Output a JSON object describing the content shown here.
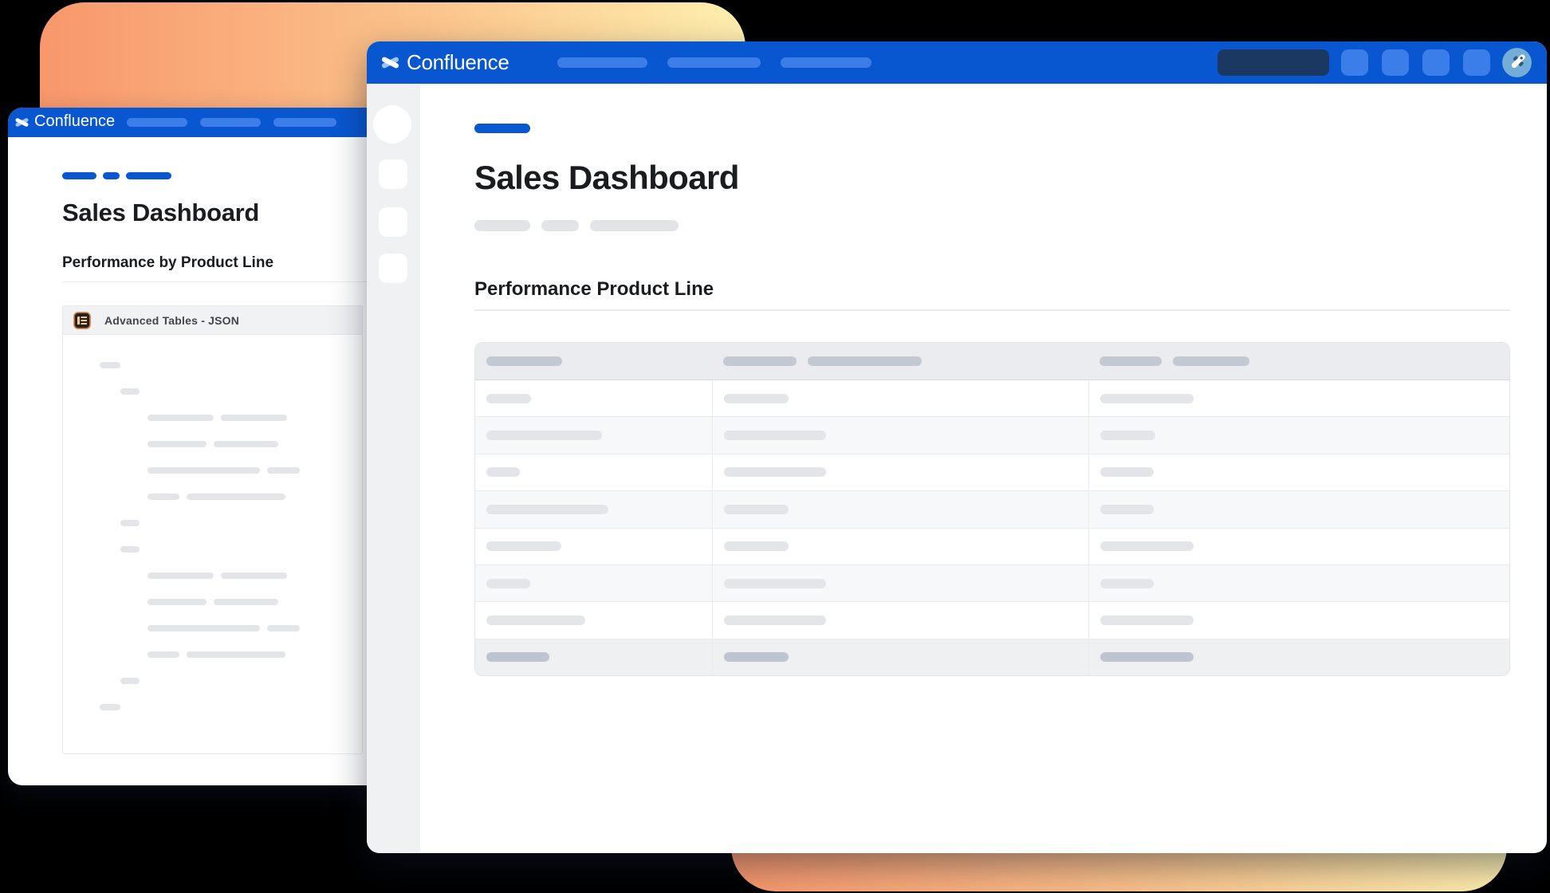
{
  "colors": {
    "canvas": "#000000",
    "grad_from": "#f8976b",
    "grad_mid": "#fbc48c",
    "grad_to": "#feefae",
    "brand_blue": "#0957d0",
    "nav_pill": "#3c7ee9",
    "search_navy": "#1a3862",
    "sidebar_bg": "#eff1f3",
    "skeleton": "#e3e5e9",
    "divider": "#e9ebee",
    "row_border": "#e9ebee",
    "table_border": "#e3e5e9",
    "table_header_bg": "#eaecf0",
    "table_header_pill": "#c3c9d3",
    "table_alt_bg": "#f7f8f9",
    "table_footer_bg": "#eef0f2",
    "table_footer_pill": "#bfc5d0",
    "title_text": "#1a1c1f",
    "macro_text": "#42464d"
  },
  "back_window": {
    "titlebar": {
      "app_name": "Confluence",
      "logo_icon": "confluence-logo-icon",
      "nav_pills": [
        76,
        76,
        79
      ]
    },
    "breadcrumb_pills": [
      43,
      21,
      57
    ],
    "page_title": "Sales Dashboard",
    "section_heading": "Performance by Product Line",
    "macro_panel": {
      "icon": "advanced-tables-icon",
      "label": "Advanced Tables - JSON",
      "skeleton_lines": [
        {
          "indent": 46,
          "pills": [
            26
          ]
        },
        {
          "indent": 72,
          "pills": [
            24
          ]
        },
        {
          "indent": 106,
          "pills": [
            83,
            83
          ]
        },
        {
          "indent": 106,
          "pills": [
            74,
            81
          ]
        },
        {
          "indent": 106,
          "pills": [
            141,
            41
          ]
        },
        {
          "indent": 106,
          "pills": [
            40,
            124
          ]
        },
        {
          "indent": 72,
          "pills": [
            24
          ]
        },
        {
          "indent": 72,
          "pills": [
            24
          ]
        },
        {
          "indent": 106,
          "pills": [
            83,
            83
          ]
        },
        {
          "indent": 106,
          "pills": [
            74,
            81
          ]
        },
        {
          "indent": 106,
          "pills": [
            141,
            41
          ]
        },
        {
          "indent": 106,
          "pills": [
            40,
            124
          ]
        },
        {
          "indent": 72,
          "pills": [
            24
          ]
        },
        {
          "indent": 46,
          "pills": [
            26
          ]
        }
      ]
    }
  },
  "front_window": {
    "titlebar": {
      "app_name": "Confluence",
      "logo_icon": "confluence-logo-icon",
      "nav_pills": [
        113,
        117,
        114
      ],
      "action_buttons": 4,
      "avatar_icon": "rocket-avatar-icon"
    },
    "sidebar_items": 3,
    "space_pill_width": 70,
    "page_title": "Sales Dashboard",
    "byline_pills": [
      70,
      47,
      111
    ],
    "section_heading": "Performance Product Line",
    "table": {
      "column_fractions": [
        0.229,
        0.364,
        0.407
      ],
      "header_pills": [
        [
          95
        ],
        [
          92,
          143
        ],
        [
          78,
          96
        ]
      ],
      "rows": [
        {
          "variant": "white",
          "cells": [
            [
              56
            ],
            [
              81
            ],
            [
              117
            ]
          ]
        },
        {
          "variant": "alt",
          "cells": [
            [
              145
            ],
            [
              128
            ],
            [
              69
            ]
          ]
        },
        {
          "variant": "white",
          "cells": [
            [
              42
            ],
            [
              128
            ],
            [
              67
            ]
          ]
        },
        {
          "variant": "alt",
          "cells": [
            [
              153
            ],
            [
              81
            ],
            [
              67
            ]
          ]
        },
        {
          "variant": "white",
          "cells": [
            [
              94
            ],
            [
              81
            ],
            [
              117
            ]
          ]
        },
        {
          "variant": "alt",
          "cells": [
            [
              55
            ],
            [
              128
            ],
            [
              67
            ]
          ]
        },
        {
          "variant": "white",
          "cells": [
            [
              124
            ],
            [
              128
            ],
            [
              117
            ]
          ]
        },
        {
          "variant": "footer",
          "cells": [
            [
              79
            ],
            [
              81
            ],
            [
              117
            ]
          ]
        }
      ]
    }
  }
}
